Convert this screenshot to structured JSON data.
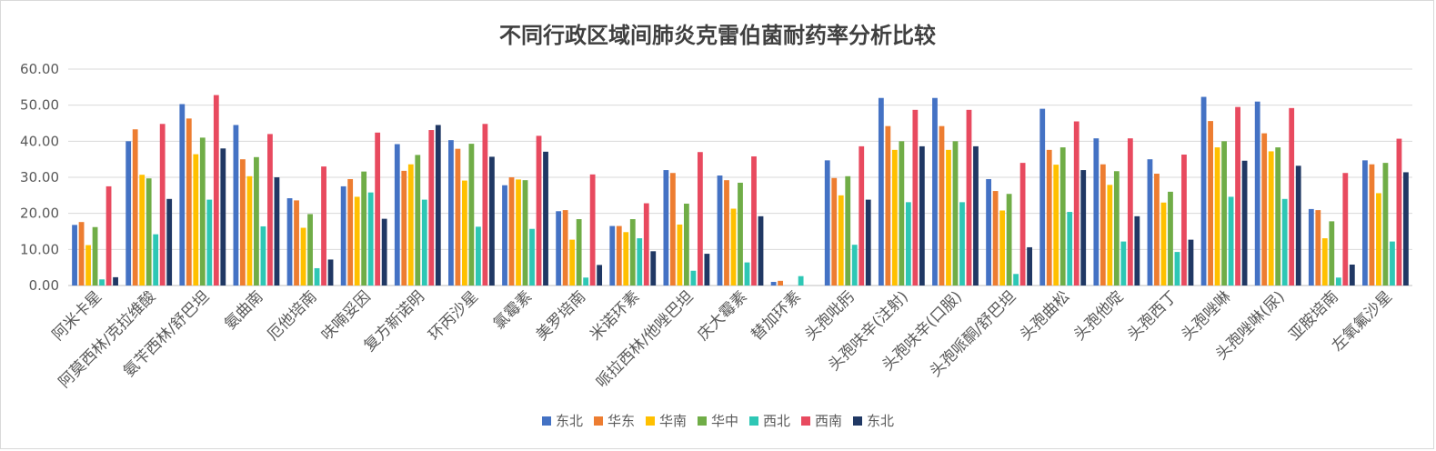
{
  "chart_data": {
    "type": "bar",
    "title": "不同行政区域间肺炎克雷伯菌耐药率分析比较",
    "xlabel": "",
    "ylabel": "",
    "ylim": [
      0,
      60
    ],
    "yticks": [
      "0.00",
      "10.00",
      "20.00",
      "30.00",
      "40.00",
      "50.00",
      "60.00"
    ],
    "grid": true,
    "legend_position": "bottom",
    "categories": [
      "阿米卡星",
      "阿莫西林/克拉维酸",
      "氨苄西林/舒巴坦",
      "氨曲南",
      "厄他培南",
      "呋喃妥因",
      "复方新诺明",
      "环丙沙星",
      "氯霉素",
      "美罗培南",
      "米诺环素",
      "哌拉西林/他唑巴坦",
      "庆大霉素",
      "替加环素",
      "头孢吡肟",
      "头孢呋辛(注射)",
      "头孢呋辛(口服)",
      "头孢哌酮/舒巴坦",
      "头孢曲松",
      "头孢他啶",
      "头孢西丁",
      "头孢唑啉",
      "头孢唑啉(尿)",
      "亚胺培南",
      "左氧氟沙星"
    ],
    "series": [
      {
        "name": "东北",
        "color": "#4472C4",
        "values": [
          16.8,
          40.0,
          50.3,
          44.5,
          24.2,
          27.5,
          39.2,
          40.3,
          27.8,
          20.6,
          16.5,
          32.0,
          30.5,
          1.0,
          34.7,
          52.0,
          52.0,
          29.5,
          49.0,
          40.8,
          35.0,
          52.3,
          51.0,
          21.2,
          34.7
        ]
      },
      {
        "name": "华东",
        "color": "#ED7D31",
        "values": [
          17.6,
          43.3,
          46.3,
          35.0,
          23.6,
          29.5,
          31.8,
          37.9,
          30.0,
          20.9,
          16.5,
          31.2,
          29.2,
          1.3,
          29.8,
          44.2,
          44.2,
          26.2,
          37.6,
          33.6,
          31.0,
          45.6,
          42.2,
          20.9,
          33.6
        ]
      },
      {
        "name": "华南",
        "color": "#FFC000",
        "values": [
          11.2,
          30.7,
          36.4,
          30.3,
          16.0,
          24.6,
          33.6,
          29.1,
          29.4,
          12.7,
          14.8,
          16.9,
          21.3,
          0.0,
          25.0,
          37.6,
          37.6,
          20.8,
          33.5,
          27.9,
          23.0,
          38.3,
          37.2,
          13.1,
          25.6
        ]
      },
      {
        "name": "华中",
        "color": "#70AD47",
        "values": [
          16.2,
          29.7,
          41.0,
          35.6,
          19.8,
          31.6,
          36.2,
          39.3,
          29.2,
          18.4,
          18.4,
          22.7,
          28.5,
          0.0,
          30.3,
          40.0,
          40.0,
          25.4,
          38.3,
          31.7,
          26.0,
          40.0,
          38.3,
          17.8,
          34.0
        ]
      },
      {
        "name": "西北",
        "color": "#2EC7B5",
        "values": [
          1.7,
          14.2,
          23.8,
          16.4,
          4.8,
          25.8,
          23.8,
          16.3,
          15.7,
          2.2,
          13.1,
          4.1,
          6.4,
          2.6,
          11.3,
          23.1,
          23.1,
          3.2,
          20.4,
          12.2,
          9.3,
          24.6,
          24.0,
          2.2,
          12.2
        ]
      },
      {
        "name": "西南",
        "color": "#E84A5F",
        "values": [
          27.5,
          44.8,
          52.8,
          42.0,
          33.0,
          42.4,
          43.1,
          44.8,
          41.5,
          30.8,
          22.8,
          37.0,
          35.8,
          0.0,
          38.6,
          48.7,
          48.7,
          34.0,
          45.5,
          40.8,
          36.3,
          49.5,
          49.2,
          31.2,
          40.7
        ]
      },
      {
        "name": "东北",
        "color": "#203864",
        "values": [
          2.3,
          24.0,
          38.0,
          30.0,
          7.2,
          18.5,
          44.5,
          35.7,
          37.1,
          5.7,
          9.5,
          8.8,
          19.2,
          0.0,
          23.8,
          38.6,
          38.6,
          10.6,
          32.0,
          19.2,
          12.7,
          34.6,
          33.2,
          5.8,
          31.4
        ]
      }
    ]
  }
}
